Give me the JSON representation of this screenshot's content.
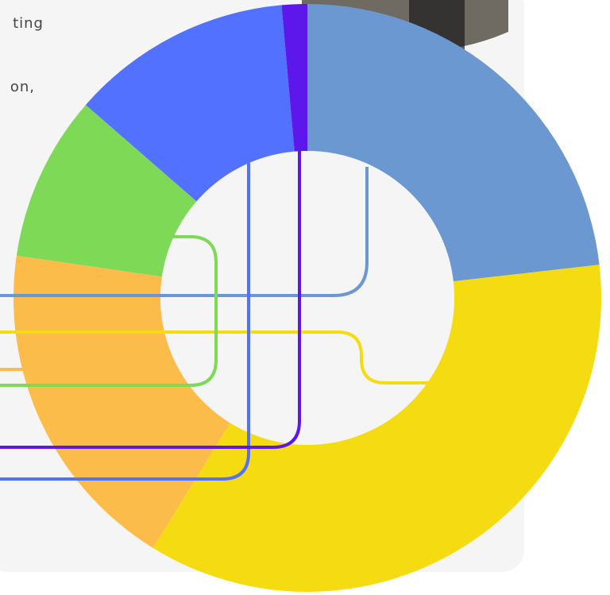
{
  "page_text": [
    "ting",
    "on,"
  ],
  "chart_data": {
    "type": "donut",
    "categories": [
      null,
      null,
      null,
      null,
      null,
      null
    ],
    "values": [
      23.2,
      35.6,
      18.5,
      9.1,
      12.2,
      1.4
    ],
    "colors": [
      "#6b98d0",
      "#f5dc12",
      "#fcbc4a",
      "#7ed957",
      "#5271ff",
      "#5d17eb"
    ]
  }
}
